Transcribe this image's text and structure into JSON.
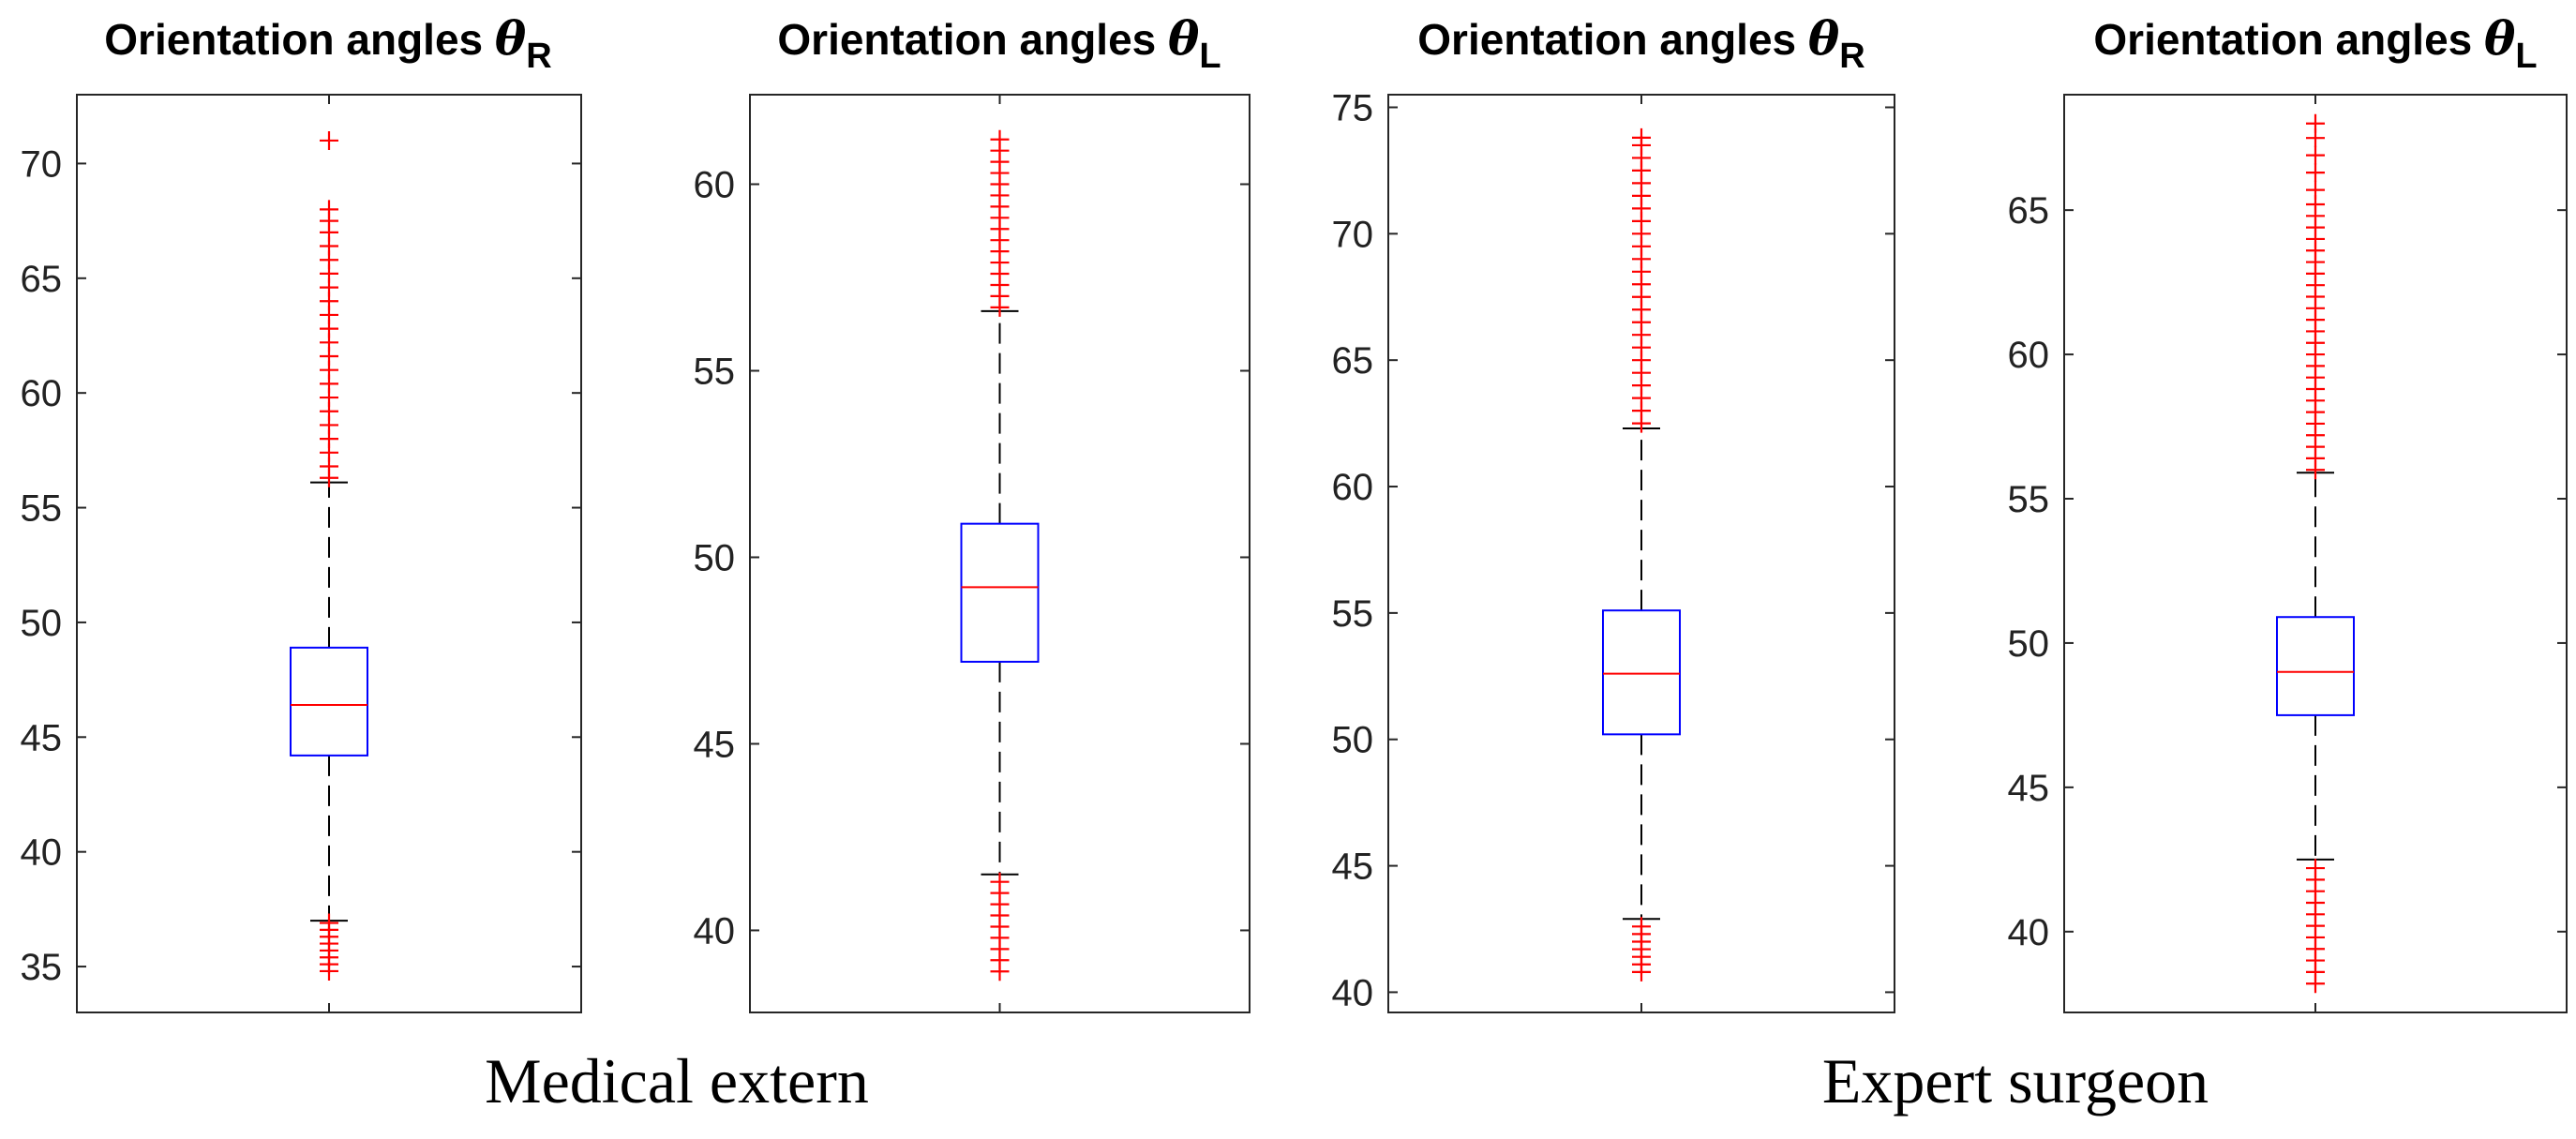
{
  "colors": {
    "box": "#0000ff",
    "median": "#ff0000",
    "outlier": "#ff0000",
    "whisker": "#000000",
    "axis": "#262626"
  },
  "captions": [
    "Medical extern",
    "Expert surgeon"
  ],
  "chart_data": [
    {
      "type": "box",
      "title": "Orientation angles",
      "symbol": "θ",
      "subscript": "R",
      "group": "Medical extern",
      "ylim": [
        33,
        73
      ],
      "yticks": [
        35,
        40,
        45,
        50,
        55,
        60,
        65,
        70
      ],
      "stats": {
        "lower_whisker": 37.0,
        "q1": 44.2,
        "median": 46.4,
        "q3": 48.9,
        "upper_whisker": 56.1
      },
      "outliers_upper": [
        56.3,
        56.8,
        57.4,
        58.0,
        58.6,
        59.2,
        59.8,
        60.4,
        61.0,
        61.6,
        62.2,
        62.8,
        63.4,
        64.0,
        64.6,
        65.2,
        65.8,
        66.4,
        67.0,
        67.5,
        68.0,
        71.0
      ],
      "outliers_lower": [
        34.8,
        35.1,
        35.4,
        35.7,
        36.0,
        36.3,
        36.6,
        36.9
      ]
    },
    {
      "type": "box",
      "title": "Orientation angles",
      "symbol": "θ",
      "subscript": "L",
      "group": "Medical extern",
      "ylim": [
        37.8,
        62.4
      ],
      "yticks": [
        40,
        45,
        50,
        55,
        60
      ],
      "stats": {
        "lower_whisker": 41.5,
        "q1": 47.2,
        "median": 49.2,
        "q3": 50.9,
        "upper_whisker": 56.6
      },
      "outliers_upper": [
        56.7,
        57.0,
        57.3,
        57.6,
        57.9,
        58.2,
        58.5,
        58.8,
        59.1,
        59.4,
        59.7,
        60.0,
        60.3,
        60.6,
        60.9,
        61.2
      ],
      "outliers_lower": [
        38.9,
        39.2,
        39.5,
        39.8,
        40.1,
        40.4,
        40.7,
        41.0,
        41.3
      ]
    },
    {
      "type": "box",
      "title": "Orientation angles",
      "symbol": "θ",
      "subscript": "R",
      "group": "Expert surgeon",
      "ylim": [
        39.2,
        75.5
      ],
      "yticks": [
        40,
        45,
        50,
        55,
        60,
        65,
        70,
        75
      ],
      "stats": {
        "lower_whisker": 42.9,
        "q1": 50.2,
        "median": 52.6,
        "q3": 55.1,
        "upper_whisker": 62.3
      },
      "outliers_upper": [
        62.5,
        63.0,
        63.5,
        64.0,
        64.5,
        65.0,
        65.5,
        66.0,
        66.5,
        67.0,
        67.5,
        68.0,
        68.5,
        69.0,
        69.5,
        70.0,
        70.5,
        71.0,
        71.5,
        72.0,
        72.5,
        73.0,
        73.5,
        73.8
      ],
      "outliers_lower": [
        40.8,
        41.1,
        41.4,
        41.7,
        42.0,
        42.3,
        42.6
      ]
    },
    {
      "type": "box",
      "title": "Orientation angles",
      "symbol": "θ",
      "subscript": "L",
      "group": "Expert surgeon",
      "ylim": [
        37.2,
        69.0
      ],
      "yticks": [
        40,
        45,
        50,
        55,
        60,
        65
      ],
      "stats": {
        "lower_whisker": 42.5,
        "q1": 47.5,
        "median": 49.0,
        "q3": 50.9,
        "upper_whisker": 55.9
      },
      "outliers_upper": [
        56.0,
        56.4,
        56.8,
        57.2,
        57.6,
        58.0,
        58.4,
        58.8,
        59.2,
        59.6,
        60.0,
        60.4,
        60.8,
        61.2,
        61.6,
        62.0,
        62.4,
        62.8,
        63.2,
        63.6,
        64.0,
        64.4,
        64.8,
        65.2,
        65.7,
        66.3,
        66.9,
        67.5,
        68.0
      ],
      "outliers_lower": [
        38.2,
        38.6,
        39.0,
        39.4,
        39.8,
        40.2,
        40.6,
        41.0,
        41.4,
        41.8,
        42.2
      ]
    }
  ]
}
